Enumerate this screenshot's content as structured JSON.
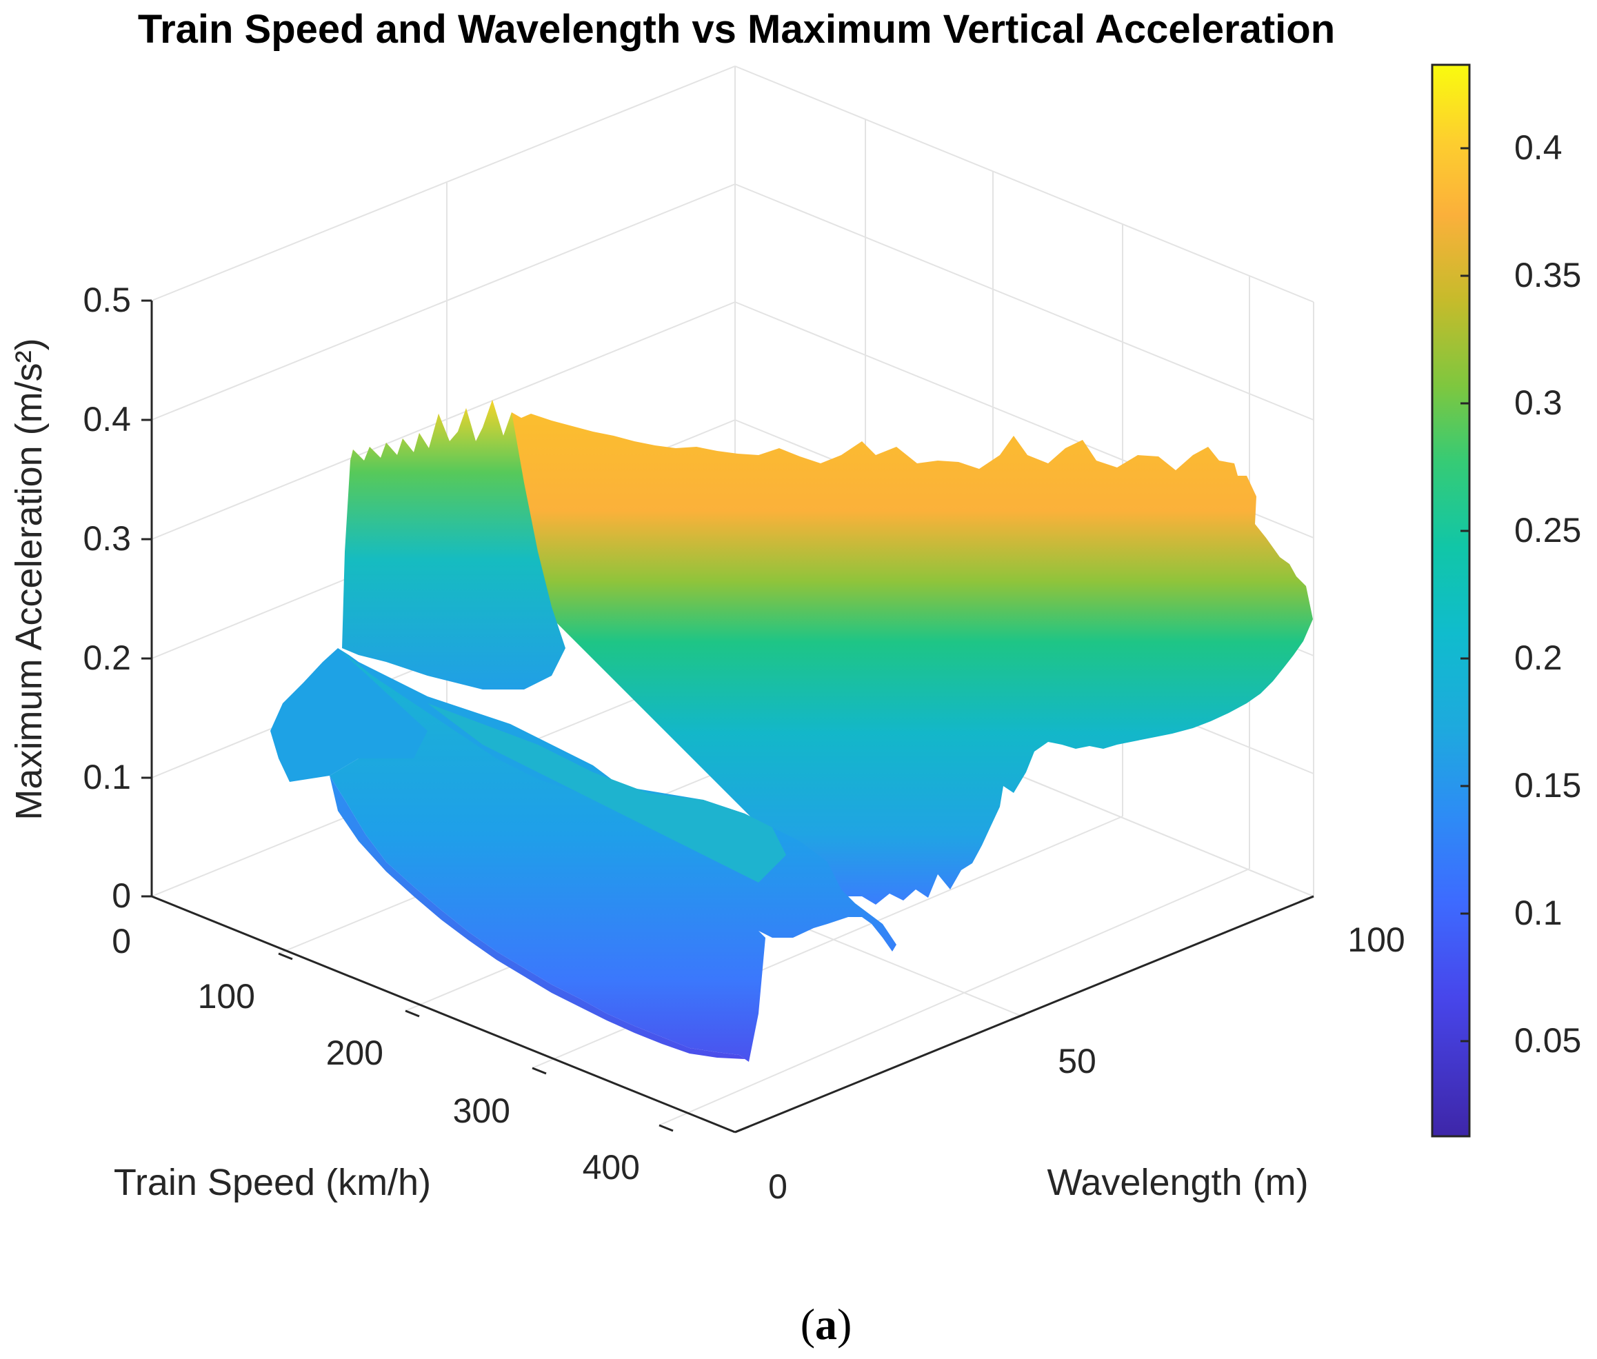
{
  "chart_data": {
    "type": "surface",
    "title": "Train Speed and Wavelength vs Maximum Vertical Acceleration",
    "xlabel": "Train Speed (km/h)",
    "ylabel": "Wavelength (m)",
    "zlabel": "Maximum Acceleration (m/s²)",
    "x_ticks": [
      "0",
      "100",
      "200",
      "300",
      "400"
    ],
    "y_ticks": [
      "0",
      "50",
      "100"
    ],
    "z_ticks": [
      "0",
      "0.1",
      "0.2",
      "0.3",
      "0.4",
      "0.5"
    ],
    "xlim": [
      0,
      400
    ],
    "ylim": [
      0,
      100
    ],
    "zlim": [
      0,
      0.5
    ],
    "colormap": "parula",
    "colorbar": {
      "ticks": [
        "0.05",
        "0.1",
        "0.15",
        "0.2",
        "0.25",
        "0.3",
        "0.35",
        "0.4"
      ],
      "limits": [
        0.01,
        0.43
      ]
    },
    "grid": true
  },
  "caption": {
    "open": "(",
    "letter": "a",
    "close": ")"
  }
}
